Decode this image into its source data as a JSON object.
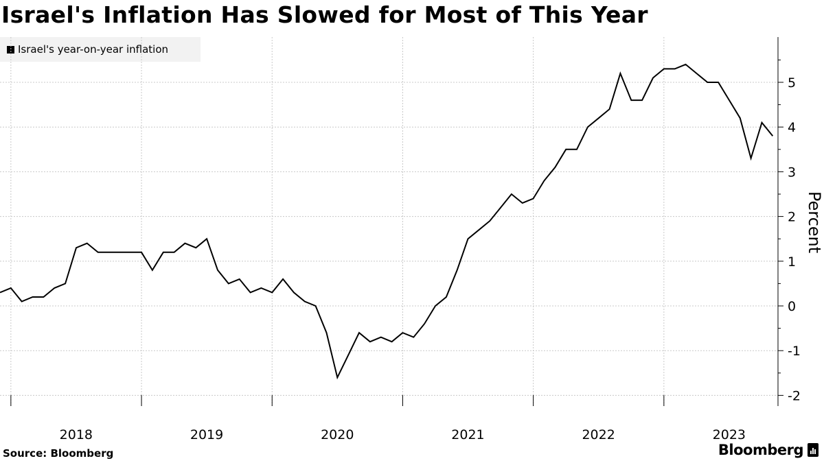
{
  "header": {
    "title": "Israel's Inflation Has Slowed for Most of This Year"
  },
  "footer": {
    "source": "Source: Bloomberg",
    "brand": "Bloomberg"
  },
  "chart_data": {
    "type": "line",
    "title": "Israel's Inflation Has Slowed for Most of This Year",
    "ylabel": "Percent",
    "xlabel": "",
    "ylim": [
      -2.2,
      6
    ],
    "y_ticks": [
      -2,
      -1,
      0,
      1,
      2,
      3,
      4,
      5
    ],
    "y_tick_labels": [
      "-2",
      "-1",
      "0",
      "1",
      "2",
      "3",
      "4",
      "5"
    ],
    "x_ticks": [
      "2018",
      "2019",
      "2020",
      "2021",
      "2022",
      "2023"
    ],
    "legend": {
      "position": "top-left",
      "entries": [
        "Israel's year-on-year inflation"
      ]
    },
    "grid": true,
    "series": [
      {
        "name": "Israel's year-on-year inflation",
        "color": "#000000",
        "start": "2017-12",
        "values": [
          0.3,
          0.4,
          0.1,
          0.2,
          0.2,
          0.4,
          0.5,
          1.3,
          1.4,
          1.2,
          1.2,
          1.2,
          1.2,
          1.2,
          0.8,
          1.2,
          1.2,
          1.4,
          1.3,
          1.5,
          0.8,
          0.5,
          0.6,
          0.3,
          0.4,
          0.3,
          0.6,
          0.3,
          0.1,
          0.0,
          -0.6,
          -1.6,
          -1.1,
          -0.6,
          -0.8,
          -0.7,
          -0.8,
          -0.6,
          -0.7,
          -0.4,
          0.0,
          0.2,
          0.8,
          1.5,
          1.7,
          1.9,
          2.2,
          2.5,
          2.3,
          2.4,
          2.8,
          3.1,
          3.5,
          3.5,
          4.0,
          4.2,
          4.4,
          5.2,
          4.6,
          4.6,
          5.1,
          5.3,
          5.3,
          5.4,
          5.2,
          5.0,
          5.0,
          4.6,
          4.2,
          3.3,
          4.1,
          3.8
        ]
      }
    ]
  }
}
